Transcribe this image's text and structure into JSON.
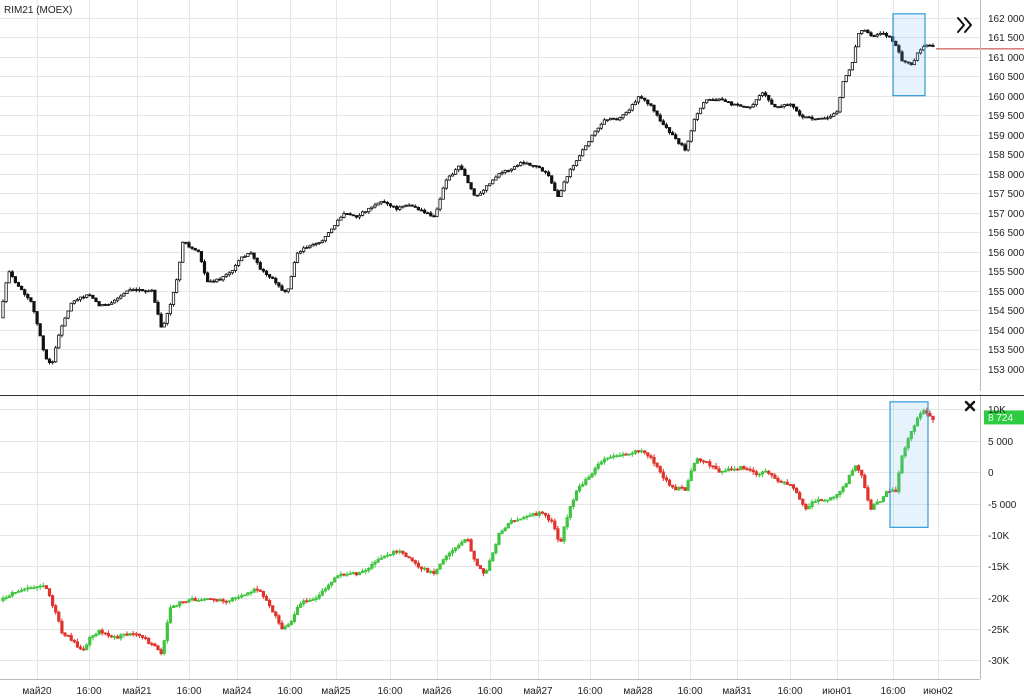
{
  "instrument": "RIM21 (MOEX)",
  "chart_data": [
    {
      "type": "candlestick",
      "series_name": "RIM21 (MOEX)",
      "ylim": [
        152500,
        162300
      ],
      "yticks": [
        153000,
        153500,
        154000,
        154500,
        155000,
        155500,
        156000,
        156500,
        157000,
        157500,
        158000,
        158500,
        159000,
        159500,
        160000,
        160500,
        161000,
        161500,
        162000
      ],
      "ytick_labels": [
        "153 000",
        "153 500",
        "154 000",
        "154 500",
        "155 000",
        "155 500",
        "156 000",
        "156 500",
        "157 000",
        "157 500",
        "158 000",
        "158 500",
        "159 000",
        "159 500",
        "160 000",
        "160 500",
        "161 000",
        "161 500",
        "162 000"
      ],
      "anchors": [
        [
          0,
          154300
        ],
        [
          8,
          155500
        ],
        [
          22,
          155000
        ],
        [
          32,
          154700
        ],
        [
          45,
          153300
        ],
        [
          52,
          153100
        ],
        [
          60,
          154000
        ],
        [
          72,
          154700
        ],
        [
          88,
          154900
        ],
        [
          100,
          154600
        ],
        [
          112,
          154700
        ],
        [
          128,
          155000
        ],
        [
          140,
          155000
        ],
        [
          152,
          155000
        ],
        [
          162,
          154000
        ],
        [
          170,
          154600
        ],
        [
          177,
          155300
        ],
        [
          183,
          156300
        ],
        [
          190,
          156100
        ],
        [
          198,
          156000
        ],
        [
          208,
          155200
        ],
        [
          220,
          155300
        ],
        [
          232,
          155500
        ],
        [
          240,
          155800
        ],
        [
          250,
          156000
        ],
        [
          262,
          155500
        ],
        [
          272,
          155300
        ],
        [
          287,
          154900
        ],
        [
          296,
          155900
        ],
        [
          305,
          156100
        ],
        [
          318,
          156200
        ],
        [
          330,
          156500
        ],
        [
          344,
          157000
        ],
        [
          356,
          156900
        ],
        [
          370,
          157100
        ],
        [
          382,
          157300
        ],
        [
          397,
          157100
        ],
        [
          410,
          157200
        ],
        [
          425,
          157000
        ],
        [
          435,
          156900
        ],
        [
          445,
          157800
        ],
        [
          460,
          158200
        ],
        [
          475,
          157400
        ],
        [
          488,
          157700
        ],
        [
          498,
          158000
        ],
        [
          510,
          158100
        ],
        [
          522,
          158300
        ],
        [
          535,
          158200
        ],
        [
          548,
          158000
        ],
        [
          558,
          157400
        ],
        [
          568,
          158000
        ],
        [
          580,
          158500
        ],
        [
          593,
          159000
        ],
        [
          605,
          159400
        ],
        [
          618,
          159400
        ],
        [
          628,
          159600
        ],
        [
          640,
          160000
        ],
        [
          652,
          159700
        ],
        [
          662,
          159300
        ],
        [
          675,
          158900
        ],
        [
          686,
          158600
        ],
        [
          694,
          159400
        ],
        [
          705,
          159900
        ],
        [
          718,
          159900
        ],
        [
          730,
          159800
        ],
        [
          742,
          159700
        ],
        [
          752,
          159700
        ],
        [
          762,
          160100
        ],
        [
          775,
          159700
        ],
        [
          790,
          159800
        ],
        [
          800,
          159500
        ],
        [
          812,
          159400
        ],
        [
          825,
          159400
        ],
        [
          838,
          159600
        ],
        [
          842,
          160300
        ],
        [
          852,
          160800
        ],
        [
          858,
          161600
        ],
        [
          864,
          161700
        ],
        [
          872,
          161500
        ],
        [
          882,
          161600
        ],
        [
          890,
          161500
        ],
        [
          896,
          161300
        ],
        [
          902,
          160900
        ],
        [
          912,
          160800
        ],
        [
          918,
          161100
        ],
        [
          925,
          161300
        ],
        [
          930,
          161300
        ],
        [
          936,
          161200
        ]
      ],
      "last_value": 161200,
      "last_value_line_color": "#c0392b",
      "highlight_box": {
        "x": [
          893,
          925
        ],
        "y": [
          160000,
          162100
        ]
      }
    },
    {
      "type": "candlestick",
      "ylim": [
        -32500,
        11500
      ],
      "yticks": [
        10000,
        5000,
        0,
        -5000,
        -10000,
        -15000,
        -20000,
        -25000,
        -30000
      ],
      "ytick_labels": [
        "10K",
        "5 000",
        "0",
        "-5 000",
        "-10K",
        "-15K",
        "-20K",
        "-25K",
        "-30K"
      ],
      "anchors": [
        [
          0,
          -20500
        ],
        [
          15,
          -19000
        ],
        [
          30,
          -18500
        ],
        [
          45,
          -18200
        ],
        [
          55,
          -22000
        ],
        [
          62,
          -25500
        ],
        [
          72,
          -26800
        ],
        [
          82,
          -28500
        ],
        [
          92,
          -26000
        ],
        [
          100,
          -25300
        ],
        [
          115,
          -26500
        ],
        [
          128,
          -25800
        ],
        [
          140,
          -26000
        ],
        [
          152,
          -27500
        ],
        [
          162,
          -29000
        ],
        [
          170,
          -21500
        ],
        [
          185,
          -20500
        ],
        [
          200,
          -20200
        ],
        [
          215,
          -20500
        ],
        [
          230,
          -20400
        ],
        [
          245,
          -19500
        ],
        [
          258,
          -18500
        ],
        [
          270,
          -21500
        ],
        [
          283,
          -25000
        ],
        [
          290,
          -24000
        ],
        [
          300,
          -21000
        ],
        [
          315,
          -20000
        ],
        [
          330,
          -17800
        ],
        [
          340,
          -16200
        ],
        [
          352,
          -16300
        ],
        [
          362,
          -16000
        ],
        [
          375,
          -14500
        ],
        [
          388,
          -13000
        ],
        [
          400,
          -12500
        ],
        [
          412,
          -14300
        ],
        [
          425,
          -15500
        ],
        [
          435,
          -16300
        ],
        [
          445,
          -13300
        ],
        [
          458,
          -11800
        ],
        [
          468,
          -10600
        ],
        [
          475,
          -14500
        ],
        [
          485,
          -16500
        ],
        [
          492,
          -13000
        ],
        [
          500,
          -9500
        ],
        [
          512,
          -7800
        ],
        [
          525,
          -7200
        ],
        [
          540,
          -6500
        ],
        [
          552,
          -7800
        ],
        [
          560,
          -11500
        ],
        [
          568,
          -6500
        ],
        [
          578,
          -2500
        ],
        [
          590,
          -800
        ],
        [
          600,
          1800
        ],
        [
          612,
          2400
        ],
        [
          625,
          2800
        ],
        [
          640,
          3400
        ],
        [
          652,
          2000
        ],
        [
          662,
          -500
        ],
        [
          672,
          -2500
        ],
        [
          685,
          -2800
        ],
        [
          695,
          2000
        ],
        [
          706,
          1500
        ],
        [
          718,
          200
        ],
        [
          730,
          500
        ],
        [
          742,
          700
        ],
        [
          755,
          -300
        ],
        [
          765,
          200
        ],
        [
          778,
          -1500
        ],
        [
          790,
          -1800
        ],
        [
          800,
          -4200
        ],
        [
          805,
          -5800
        ],
        [
          815,
          -4500
        ],
        [
          825,
          -4500
        ],
        [
          835,
          -3700
        ],
        [
          845,
          -2000
        ],
        [
          855,
          1000
        ],
        [
          862,
          -800
        ],
        [
          870,
          -5800
        ],
        [
          880,
          -4700
        ],
        [
          888,
          -3000
        ],
        [
          896,
          -3000
        ],
        [
          902,
          2500
        ],
        [
          910,
          6000
        ],
        [
          918,
          8800
        ],
        [
          925,
          9800
        ],
        [
          932,
          8500
        ],
        [
          936,
          8724
        ]
      ],
      "last_value": 8724,
      "last_value_label": "8 724",
      "last_value_label_color": "#2ecc40",
      "highlight_box": {
        "x": [
          890,
          928
        ],
        "y": [
          -8800,
          11200
        ]
      }
    }
  ],
  "x_axis": {
    "tick_labels": [
      "май20",
      "16:00",
      "май21",
      "16:00",
      "май24",
      "16:00",
      "май25",
      "16:00",
      "май26",
      "16:00",
      "май27",
      "16:00",
      "май28",
      "16:00",
      "май31",
      "16:00",
      "июн01",
      "16:00",
      "июн02"
    ],
    "tick_positions": [
      37,
      89,
      137,
      189,
      237,
      290,
      336,
      390,
      437,
      490,
      538,
      590,
      638,
      690,
      737,
      790,
      837,
      893,
      938
    ]
  },
  "colors": {
    "up_main": "#111111",
    "down_main": "#111111",
    "up_sub": "#3ec43e",
    "down_sub": "#e0332a",
    "grid": "#e6e6e6",
    "highlight": "#3399dd",
    "separator": "#333333"
  },
  "controls": {
    "scroll_icon": "double-chevron-right-icon",
    "close_icon": "close-x-icon"
  }
}
